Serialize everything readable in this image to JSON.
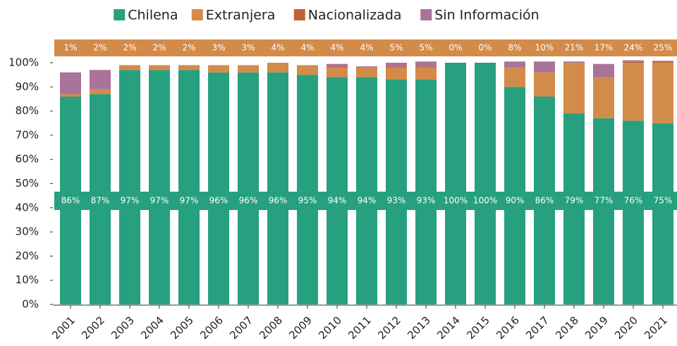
{
  "chart_data": {
    "type": "stacked_bar",
    "categories": [
      "2001",
      "2002",
      "2003",
      "2004",
      "2005",
      "2006",
      "2007",
      "2008",
      "2009",
      "2010",
      "2011",
      "2012",
      "2013",
      "2014",
      "2015",
      "2016",
      "2017",
      "2018",
      "2019",
      "2020",
      "2021"
    ],
    "series": [
      {
        "name": "Chilena",
        "color": "#27a07f",
        "values": [
          86,
          87,
          97,
          97,
          97,
          96,
          96,
          96,
          95,
          94,
          94,
          93,
          93,
          100,
          100,
          90,
          86,
          79,
          77,
          76,
          75
        ],
        "value_labels": [
          "86%",
          "87%",
          "97%",
          "97%",
          "97%",
          "96%",
          "96%",
          "96%",
          "95%",
          "94%",
          "94%",
          "93%",
          "93%",
          "100%",
          "100%",
          "90%",
          "86%",
          "79%",
          "77%",
          "76%",
          "75%"
        ]
      },
      {
        "name": "Extranjera",
        "color": "#d38b4a",
        "values": [
          1,
          2,
          2,
          2,
          2,
          3,
          3,
          4,
          4,
          4,
          4,
          5,
          5,
          0,
          0,
          8,
          10,
          21,
          17,
          24,
          25
        ],
        "value_labels": [
          "1%",
          "2%",
          "2%",
          "2%",
          "2%",
          "3%",
          "3%",
          "4%",
          "4%",
          "4%",
          "4%",
          "5%",
          "5%",
          "0%",
          "0%",
          "8%",
          "10%",
          "21%",
          "17%",
          "24%",
          "25%"
        ]
      },
      {
        "name": "Nacionalizada",
        "color": "#c0623a",
        "values": [
          0,
          0,
          0,
          0,
          0,
          0,
          0,
          0,
          0,
          0.5,
          0,
          0.5,
          0.5,
          0,
          0,
          0,
          0,
          0,
          0,
          0.5,
          0.3
        ]
      },
      {
        "name": "Sin Información",
        "color": "#a9739a",
        "values": [
          9,
          8,
          0,
          0,
          0,
          0,
          0,
          0,
          0,
          1,
          0.5,
          1.5,
          2,
          0,
          0,
          2.5,
          4.5,
          0.5,
          5.5,
          0.5,
          0.5
        ]
      }
    ],
    "ylim": [
      0,
      100
    ],
    "yticks": [
      {
        "value": 0,
        "label": "0%"
      },
      {
        "value": 10,
        "label": "10%"
      },
      {
        "value": 20,
        "label": "20%"
      },
      {
        "value": 30,
        "label": "30%"
      },
      {
        "value": 40,
        "label": "40%"
      },
      {
        "value": 50,
        "label": "50%"
      },
      {
        "value": 60,
        "label": "60%"
      },
      {
        "value": 70,
        "label": "70%"
      },
      {
        "value": 80,
        "label": "80%"
      },
      {
        "value": 90,
        "label": "90%"
      },
      {
        "value": 100,
        "label": "100%"
      }
    ],
    "legend": "top"
  }
}
